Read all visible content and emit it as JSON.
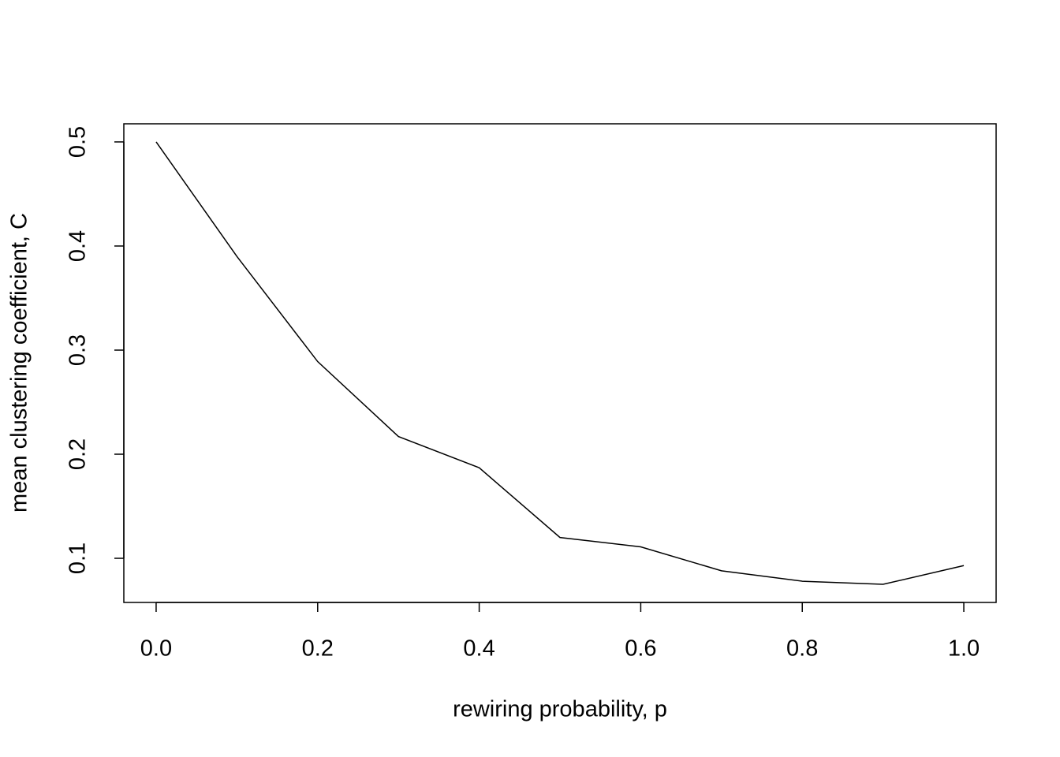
{
  "chart_data": {
    "type": "line",
    "x_label": "rewiring probability, p",
    "y_label": "mean clustering coefficient, C",
    "x": [
      0,
      0.1,
      0.2,
      0.3,
      0.4,
      0.5,
      0.6,
      0.7,
      0.8,
      0.9,
      1
    ],
    "series": [
      {
        "color": "#000000",
        "values": [
          0.5,
          0.39,
          0.289,
          0.217,
          0.187,
          0.12,
          0.111,
          0.088,
          0.078,
          0.075,
          0.093
        ]
      }
    ],
    "xlim": [
      -0.04,
      1.04
    ],
    "ylim": [
      0.0576,
      0.5174
    ],
    "xticks": [
      {
        "value": 0,
        "label": "0.0"
      },
      0.2,
      0.4,
      0.6,
      0.8,
      {
        "value": 1,
        "label": "1.0"
      }
    ],
    "yticks": [
      0.1,
      0.2,
      0.3,
      0.4,
      0.5
    ],
    "grid": false
  }
}
